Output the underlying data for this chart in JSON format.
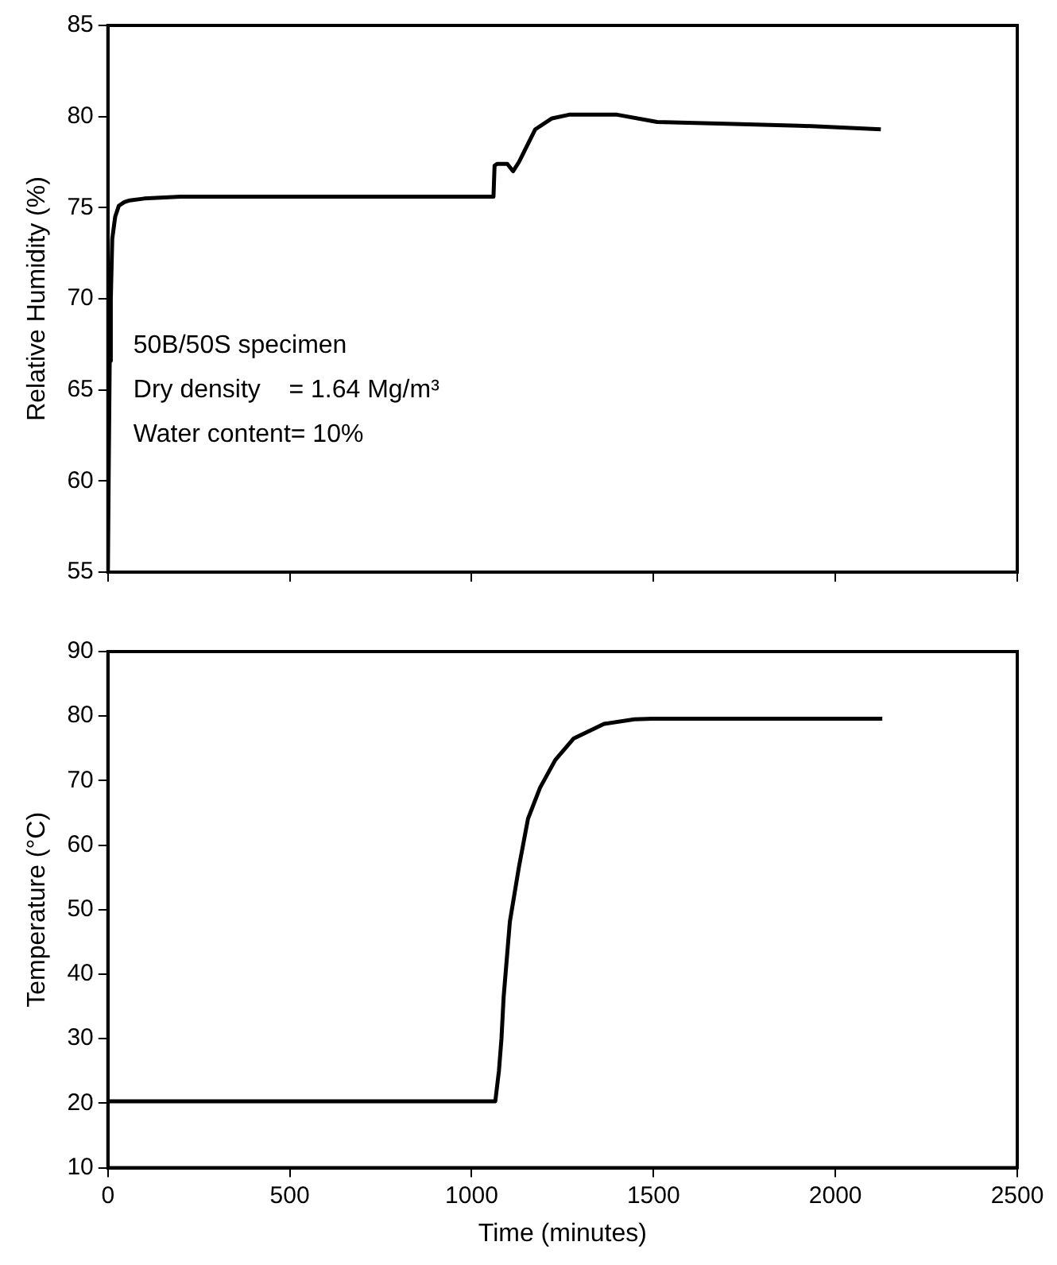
{
  "chart_data": [
    {
      "type": "line",
      "ylabel": "Relative Humidity (%)",
      "xlim": [
        0,
        2500
      ],
      "xticks": [
        0,
        500,
        1000,
        1500,
        2000,
        2500
      ],
      "ylim": [
        55,
        85
      ],
      "yticks": [
        55,
        60,
        65,
        70,
        75,
        80,
        85
      ],
      "tick_labels": "y",
      "grid": false,
      "legend": false,
      "marker": "none",
      "line_style": "solid",
      "annotations": [
        "50B/50S specimen",
        "Dry density    = 1.64 Mg/m³",
        "Water content= 10%"
      ],
      "series": [
        {
          "color": "#000000",
          "x": [
            0,
            2,
            5,
            8,
            12,
            20,
            30,
            45,
            60,
            100,
            200,
            500,
            800,
            1060,
            1063,
            1070,
            1098,
            1114,
            1130,
            1145,
            1175,
            1221,
            1268,
            1331,
            1400,
            1510,
            1700,
            1900,
            2125
          ],
          "values": [
            55,
            60,
            66.6,
            70,
            73.3,
            74.5,
            75.1,
            75.3,
            75.4,
            75.5,
            75.6,
            75.6,
            75.6,
            75.6,
            77.3,
            77.4,
            77.4,
            77,
            77.5,
            78.1,
            79.3,
            79.9,
            80.1,
            80.1,
            80.1,
            79.7,
            79.6,
            79.5,
            79.3
          ]
        }
      ]
    },
    {
      "type": "line",
      "xlabel": "Time (minutes)",
      "ylabel": "Temperature (°C)",
      "xlim": [
        0,
        2500
      ],
      "xticks": [
        0,
        500,
        1000,
        1500,
        2000,
        2500
      ],
      "ylim": [
        10,
        90
      ],
      "yticks": [
        10,
        20,
        30,
        40,
        50,
        60,
        70,
        80,
        90
      ],
      "grid": false,
      "legend": false,
      "marker": "none",
      "line_style": "solid",
      "series": [
        {
          "color": "#000000",
          "x": [
            0,
            500,
            1000,
            1065,
            1075,
            1082,
            1088,
            1105,
            1130,
            1155,
            1188,
            1230,
            1280,
            1364,
            1447,
            1496,
            1800,
            2129
          ],
          "values": [
            20.3,
            20.3,
            20.3,
            20.3,
            25,
            30,
            36.5,
            48.1,
            56.6,
            64.1,
            68.9,
            73.2,
            76.5,
            78.8,
            79.5,
            79.6,
            79.6,
            79.6
          ]
        }
      ]
    }
  ]
}
